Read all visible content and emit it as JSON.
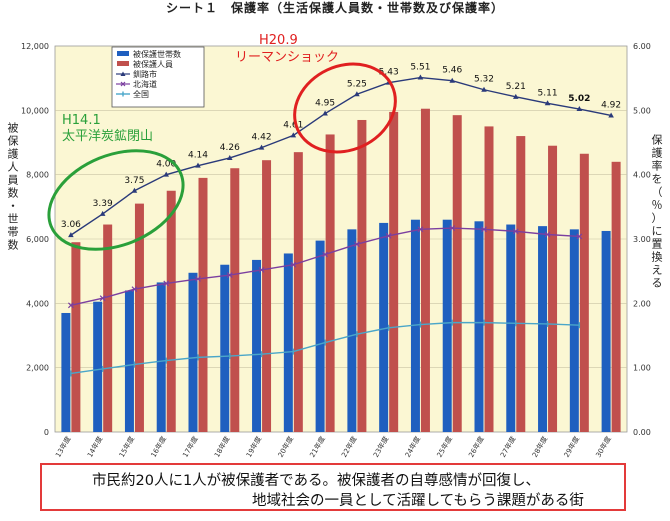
{
  "chart_data": {
    "title": "シート１　保護率（生活保護人員数・世帯数及び保護率）",
    "y_left_label": "被保護人員数・世帯数",
    "y_right_label": "保護率を（％）に置換える",
    "ylim_left": [
      0,
      12000
    ],
    "ylim_right": [
      0,
      6
    ],
    "grid": true,
    "legend_position": "top-left",
    "categories": [
      "13年度",
      "14年度",
      "15年度",
      "16年度",
      "17年度",
      "18年度",
      "19年度",
      "20年度",
      "21年度",
      "22年度",
      "23年度",
      "24年度",
      "25年度",
      "26年度",
      "27年度",
      "28年度",
      "29年度",
      "30年度"
    ],
    "y_ticks_left": [
      "0",
      "2,000",
      "4,000",
      "6,000",
      "8,000",
      "10,000",
      "12,000"
    ],
    "y_ticks_right": [
      "0.00",
      "1.00",
      "2.00",
      "3.00",
      "4.00",
      "5.00",
      "6.00"
    ],
    "series": [
      {
        "name": "被保護世帯数",
        "type": "bar",
        "axis": "left",
        "color": "#1f5fbf",
        "values": [
          3700,
          4050,
          4400,
          4650,
          4950,
          5200,
          5350,
          5550,
          5950,
          6300,
          6500,
          6600,
          6600,
          6550,
          6450,
          6400,
          6300,
          6250
        ]
      },
      {
        "name": "被保護人員",
        "type": "bar",
        "axis": "left",
        "color": "#c0504d",
        "values": [
          5900,
          6450,
          7100,
          7500,
          7900,
          8200,
          8450,
          8700,
          9250,
          9700,
          9950,
          10050,
          9850,
          9500,
          9200,
          8900,
          8650,
          8400
        ]
      },
      {
        "name": "釧路市",
        "type": "line",
        "axis": "right",
        "color": "#2a3a7a",
        "marker": "triangle",
        "values": [
          3.06,
          3.39,
          3.75,
          4.0,
          4.14,
          4.26,
          4.42,
          4.61,
          4.95,
          5.25,
          5.43,
          5.51,
          5.46,
          5.32,
          5.21,
          5.11,
          5.02,
          4.92
        ],
        "labels": [
          "3.06",
          "3.39",
          "3.75",
          "4.00",
          "4.14",
          "4.26",
          "4.42",
          "4.61",
          "4.95",
          "5.25",
          "5.43",
          "5.51",
          "5.46",
          "5.32",
          "5.21",
          "5.11",
          "5.02",
          "4.92"
        ]
      },
      {
        "name": "北海道",
        "type": "line",
        "axis": "right",
        "color": "#7b3fa0",
        "marker": "x",
        "values": [
          1.97,
          2.08,
          2.22,
          2.31,
          2.38,
          2.44,
          2.52,
          2.6,
          2.76,
          2.92,
          3.05,
          3.15,
          3.17,
          3.15,
          3.12,
          3.07,
          3.04,
          null
        ]
      },
      {
        "name": "全国",
        "type": "line",
        "axis": "right",
        "color": "#4aa6c9",
        "marker": "bar",
        "values": [
          0.91,
          0.98,
          1.05,
          1.11,
          1.16,
          1.18,
          1.21,
          1.25,
          1.39,
          1.52,
          1.62,
          1.67,
          1.7,
          1.7,
          1.69,
          1.68,
          1.66,
          null
        ]
      }
    ],
    "annotations": [
      {
        "label": "H14.1",
        "text": "太平洋炭鉱閉山",
        "color": "#2aa03a"
      },
      {
        "label": "H20.9",
        "text": "リーマンショック",
        "color": "#e02020"
      }
    ]
  },
  "footer": {
    "line1": "市民約20人に1人が被保護者である。被保護者の自尊感情が回復し、",
    "line2": "地域社会の一員として活躍してもらう課題がある街"
  }
}
